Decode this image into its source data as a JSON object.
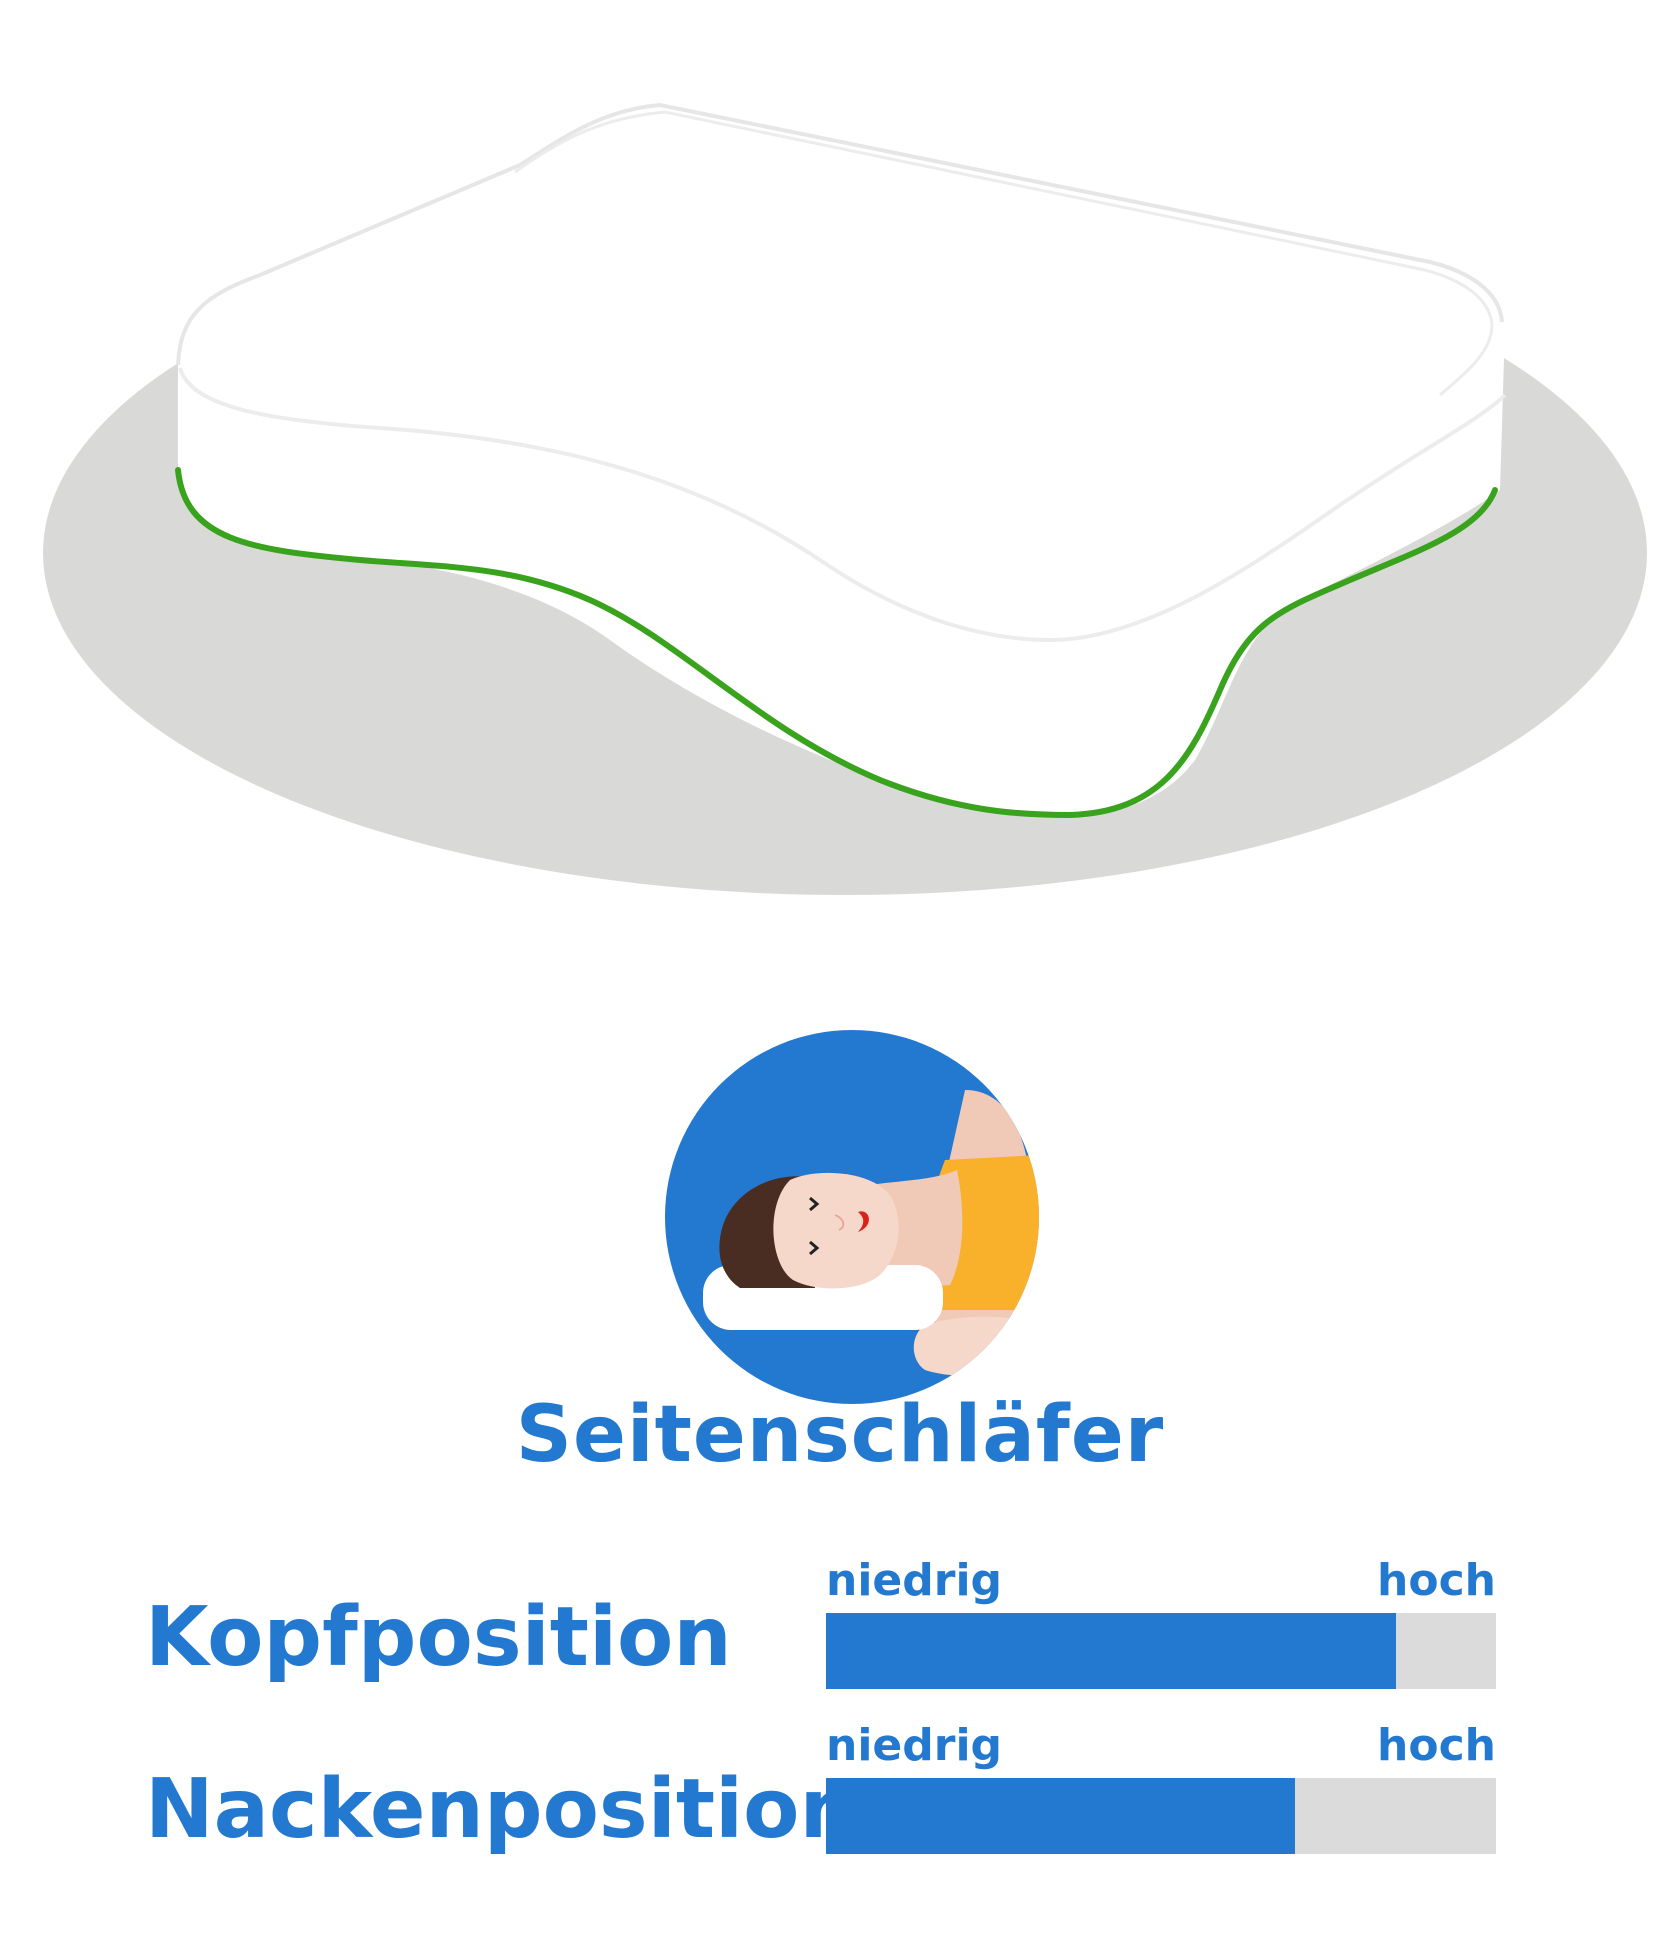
{
  "title": "Seitenschläfer",
  "colors": {
    "accent": "#2378d0",
    "track": "#dadbda",
    "contour": "#3aa31e",
    "pillow_shadow": "#d9dad8",
    "shirt": "#f9b12b"
  },
  "icons": {
    "pillow": "contour-pillow-illustration",
    "sleeper": "side-sleeper-icon"
  },
  "ratings": [
    {
      "label": "Kopfposition",
      "low": "niedrig",
      "high": "hoch",
      "level": 0.85
    },
    {
      "label": "Nackenposition",
      "low": "niedrig",
      "high": "hoch",
      "level": 0.7
    }
  ]
}
